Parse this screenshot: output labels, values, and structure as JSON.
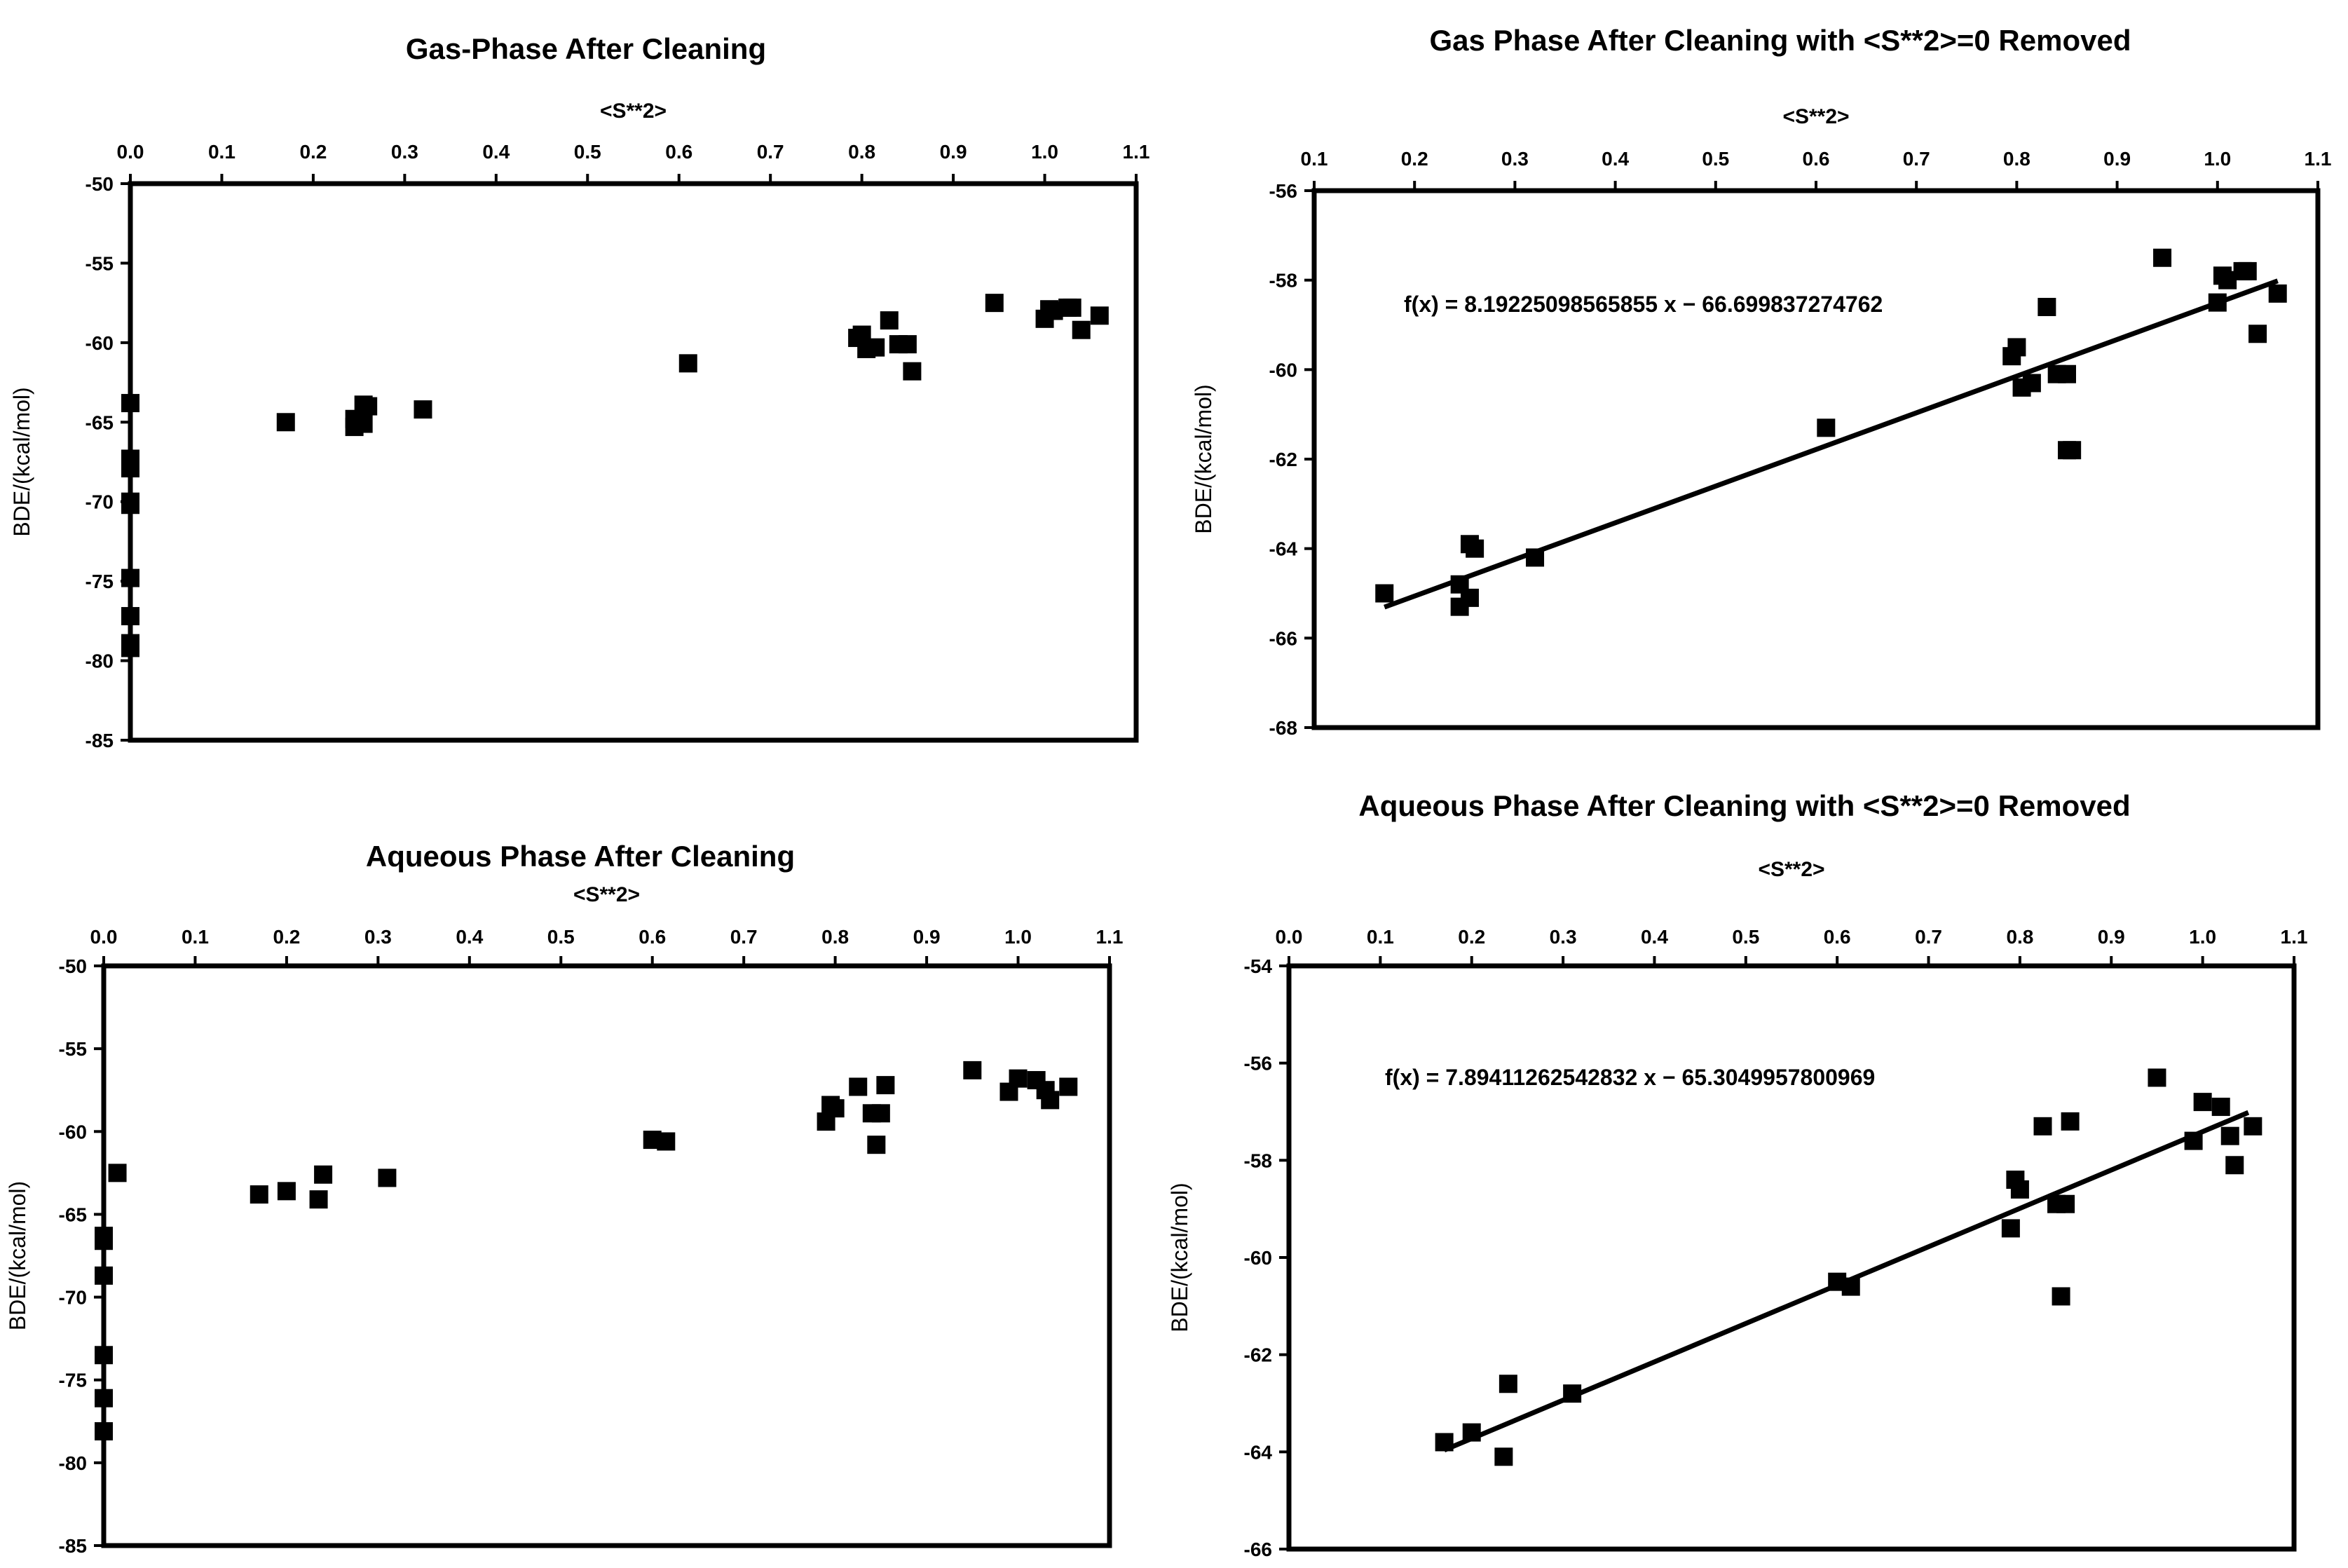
{
  "chart_data": [
    {
      "type": "scatter",
      "title": "Gas-Phase After Cleaning",
      "xlabel": "<S**2>",
      "ylabel": "BDE/(kcal/mol)",
      "xlim": [
        0.0,
        1.1
      ],
      "ylim": [
        -85,
        -50
      ],
      "x_ticks": [
        0.0,
        0.1,
        0.2,
        0.3,
        0.4,
        0.5,
        0.6,
        0.7,
        0.8,
        0.9,
        1.0,
        1.1
      ],
      "x_tick_labels": [
        "0.0",
        "0.1",
        "0.2",
        "0.3",
        "0.4",
        "0.5",
        "0.6",
        "0.7",
        "0.8",
        "0.9",
        "1.0",
        "1.1"
      ],
      "y_ticks": [
        -50,
        -55,
        -60,
        -65,
        -70,
        -75,
        -80,
        -85
      ],
      "y_tick_labels": [
        "-50",
        "-55",
        "-60",
        "-65",
        "-70",
        "-75",
        "-80",
        "-85"
      ],
      "points": [
        [
          0.0,
          -63.8
        ],
        [
          0.0,
          -67.3
        ],
        [
          0.0,
          -67.9
        ],
        [
          0.0,
          -70.0
        ],
        [
          0.0,
          -70.2
        ],
        [
          0.0,
          -74.8
        ],
        [
          0.0,
          -77.2
        ],
        [
          0.0,
          -78.9
        ],
        [
          0.0,
          -79.2
        ],
        [
          0.17,
          -65.0
        ],
        [
          0.245,
          -64.8
        ],
        [
          0.245,
          -65.3
        ],
        [
          0.255,
          -65.1
        ],
        [
          0.255,
          -63.9
        ],
        [
          0.26,
          -64.0
        ],
        [
          0.32,
          -64.2
        ],
        [
          0.61,
          -61.3
        ],
        [
          0.795,
          -59.7
        ],
        [
          0.8,
          -59.5
        ],
        [
          0.805,
          -60.4
        ],
        [
          0.815,
          -60.3
        ],
        [
          0.83,
          -58.6
        ],
        [
          0.84,
          -60.1
        ],
        [
          0.85,
          -60.1
        ],
        [
          0.855,
          -61.8
        ],
        [
          0.945,
          -57.5
        ],
        [
          1.0,
          -58.5
        ],
        [
          1.005,
          -57.9
        ],
        [
          1.01,
          -58.0
        ],
        [
          1.025,
          -57.8
        ],
        [
          1.03,
          -57.8
        ],
        [
          1.04,
          -59.2
        ],
        [
          1.06,
          -58.3
        ]
      ]
    },
    {
      "type": "scatter",
      "title": "Gas Phase After Cleaning with <S**2>=0 Removed",
      "xlabel": "<S**2>",
      "ylabel": "BDE/(kcal/mol)",
      "xlim": [
        0.1,
        1.1
      ],
      "ylim": [
        -68,
        -56
      ],
      "x_ticks": [
        0.1,
        0.2,
        0.3,
        0.4,
        0.5,
        0.6,
        0.7,
        0.8,
        0.9,
        1.0,
        1.1
      ],
      "x_tick_labels": [
        "0.1",
        "0.2",
        "0.3",
        "0.4",
        "0.5",
        "0.6",
        "0.7",
        "0.8",
        "0.9",
        "1.0",
        "1.1"
      ],
      "y_ticks": [
        -56,
        -58,
        -60,
        -62,
        -64,
        -66,
        -68
      ],
      "y_tick_labels": [
        "-56",
        "-58",
        "-60",
        "-62",
        "-64",
        "-66",
        "-68"
      ],
      "trendline": {
        "slope": 8.19225098565855,
        "intercept": -66.699837274762,
        "x_range": [
          0.17,
          1.06
        ]
      },
      "equation": "f(x) = 8.19225098565855 x − 66.699837274762",
      "points": [
        [
          0.17,
          -65.0
        ],
        [
          0.245,
          -64.8
        ],
        [
          0.245,
          -65.3
        ],
        [
          0.255,
          -65.1
        ],
        [
          0.255,
          -63.9
        ],
        [
          0.26,
          -64.0
        ],
        [
          0.32,
          -64.2
        ],
        [
          0.61,
          -61.3
        ],
        [
          0.795,
          -59.7
        ],
        [
          0.8,
          -59.5
        ],
        [
          0.805,
          -60.4
        ],
        [
          0.815,
          -60.3
        ],
        [
          0.83,
          -58.6
        ],
        [
          0.84,
          -60.1
        ],
        [
          0.85,
          -60.1
        ],
        [
          0.85,
          -61.8
        ],
        [
          0.855,
          -61.8
        ],
        [
          0.945,
          -57.5
        ],
        [
          1.0,
          -58.5
        ],
        [
          1.005,
          -57.9
        ],
        [
          1.01,
          -58.0
        ],
        [
          1.025,
          -57.8
        ],
        [
          1.03,
          -57.8
        ],
        [
          1.04,
          -59.2
        ],
        [
          1.06,
          -58.3
        ]
      ]
    },
    {
      "type": "scatter",
      "title": "Aqueous Phase After Cleaning",
      "xlabel": "<S**2>",
      "ylabel": "BDE/(kcal/mol)",
      "xlim": [
        0.0,
        1.1
      ],
      "ylim": [
        -85,
        -50
      ],
      "x_ticks": [
        0.0,
        0.1,
        0.2,
        0.3,
        0.4,
        0.5,
        0.6,
        0.7,
        0.8,
        0.9,
        1.0,
        1.1
      ],
      "x_tick_labels": [
        "0.0",
        "0.1",
        "0.2",
        "0.3",
        "0.4",
        "0.5",
        "0.6",
        "0.7",
        "0.8",
        "0.9",
        "1.0",
        "1.1"
      ],
      "y_ticks": [
        -50,
        -55,
        -60,
        -65,
        -70,
        -75,
        -80,
        -85
      ],
      "y_tick_labels": [
        "-50",
        "-55",
        "-60",
        "-65",
        "-70",
        "-75",
        "-80",
        "-85"
      ],
      "points": [
        [
          0.015,
          -62.5
        ],
        [
          0.0,
          -66.3
        ],
        [
          0.0,
          -66.6
        ],
        [
          0.0,
          -68.7
        ],
        [
          0.0,
          -73.5
        ],
        [
          0.0,
          -76.1
        ],
        [
          0.0,
          -78.1
        ],
        [
          0.17,
          -63.8
        ],
        [
          0.2,
          -63.6
        ],
        [
          0.235,
          -64.1
        ],
        [
          0.24,
          -62.6
        ],
        [
          0.31,
          -62.8
        ],
        [
          0.6,
          -60.5
        ],
        [
          0.615,
          -60.6
        ],
        [
          0.79,
          -59.4
        ],
        [
          0.795,
          -58.4
        ],
        [
          0.8,
          -58.6
        ],
        [
          0.825,
          -57.3
        ],
        [
          0.84,
          -58.9
        ],
        [
          0.845,
          -60.8
        ],
        [
          0.85,
          -58.9
        ],
        [
          0.855,
          -57.2
        ],
        [
          0.95,
          -56.3
        ],
        [
          0.99,
          -57.6
        ],
        [
          1.0,
          -56.8
        ],
        [
          1.02,
          -56.9
        ],
        [
          1.03,
          -57.5
        ],
        [
          1.035,
          -58.1
        ],
        [
          1.055,
          -57.3
        ]
      ]
    },
    {
      "type": "scatter",
      "title": "Aqueous Phase After Cleaning with <S**2>=0 Removed",
      "xlabel": "<S**2>",
      "ylabel": "BDE/(kcal/mol)",
      "xlim": [
        0.0,
        1.1
      ],
      "ylim": [
        -66,
        -54
      ],
      "x_ticks": [
        0.0,
        0.1,
        0.2,
        0.3,
        0.4,
        0.5,
        0.6,
        0.7,
        0.8,
        0.9,
        1.0,
        1.1
      ],
      "x_tick_labels": [
        "0.0",
        "0.1",
        "0.2",
        "0.3",
        "0.4",
        "0.5",
        "0.6",
        "0.7",
        "0.8",
        "0.9",
        "1.0",
        "1.1"
      ],
      "y_ticks": [
        -54,
        -56,
        -58,
        -60,
        -62,
        -64,
        -66
      ],
      "y_tick_labels": [
        "-54",
        "-56",
        "-58",
        "-60",
        "-62",
        "-64",
        "-66"
      ],
      "trendline": {
        "slope": 7.89411262542832,
        "intercept": -65.3049957800969,
        "x_range": [
          0.17,
          1.05
        ]
      },
      "equation": "f(x) = 7.89411262542832 x − 65.3049957800969",
      "points": [
        [
          0.17,
          -63.8
        ],
        [
          0.2,
          -63.6
        ],
        [
          0.235,
          -64.1
        ],
        [
          0.24,
          -62.6
        ],
        [
          0.31,
          -62.8
        ],
        [
          0.6,
          -60.5
        ],
        [
          0.615,
          -60.6
        ],
        [
          0.79,
          -59.4
        ],
        [
          0.795,
          -58.4
        ],
        [
          0.8,
          -58.6
        ],
        [
          0.825,
          -57.3
        ],
        [
          0.84,
          -58.9
        ],
        [
          0.845,
          -60.8
        ],
        [
          0.85,
          -58.9
        ],
        [
          0.855,
          -57.2
        ],
        [
          0.95,
          -56.3
        ],
        [
          0.99,
          -57.6
        ],
        [
          1.0,
          -56.8
        ],
        [
          1.02,
          -56.9
        ],
        [
          1.03,
          -57.5
        ],
        [
          1.035,
          -58.1
        ],
        [
          1.055,
          -57.3
        ]
      ]
    }
  ]
}
